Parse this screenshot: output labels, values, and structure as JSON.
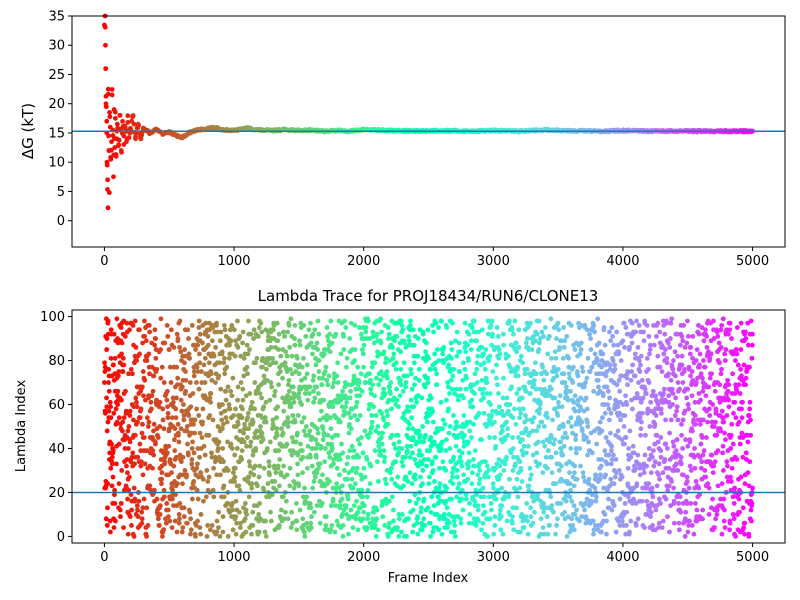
{
  "chart_data": [
    {
      "type": "scatter",
      "title": "",
      "xlabel": "",
      "ylabel": "ΔG (kT)",
      "xlim": [
        -250,
        5250
      ],
      "ylim": [
        -4.5,
        35
      ],
      "x_ticks": [
        0,
        1000,
        2000,
        3000,
        4000,
        5000
      ],
      "y_ticks": [
        0,
        5,
        10,
        15,
        20,
        25,
        30,
        35
      ],
      "x_tick_labels": [
        "0",
        "1000",
        "2000",
        "3000",
        "4000",
        "5000"
      ],
      "y_tick_labels": [
        "0",
        "5",
        "10",
        "15",
        "20",
        "25",
        "30",
        "35"
      ],
      "hline": {
        "y": 15.3,
        "color": "#1f77b4"
      },
      "colormap": "rainbow (reversed: red at frame 0, violet at frame 5000)",
      "series": [
        {
          "points": [
            [
              5,
              35.0
            ],
            [
              8,
              30.0
            ],
            [
              10,
              26.0
            ],
            [
              12,
              20.0
            ],
            [
              15,
              19.5
            ],
            [
              18,
              17.0
            ],
            [
              20,
              10.0
            ],
            [
              22,
              9.5
            ],
            [
              25,
              7.0
            ],
            [
              28,
              2.2
            ],
            [
              30,
              22.5
            ],
            [
              32,
              14.5
            ],
            [
              35,
              12.0
            ],
            [
              38,
              4.8
            ],
            [
              40,
              18.5
            ],
            [
              45,
              16.0
            ],
            [
              50,
              10.5
            ],
            [
              55,
              13.5
            ],
            [
              60,
              21.5
            ],
            [
              65,
              15.5
            ],
            [
              70,
              7.5
            ],
            [
              75,
              19.0
            ],
            [
              80,
              12.5
            ],
            [
              85,
              17.5
            ],
            [
              90,
              11.0
            ],
            [
              95,
              14.0
            ],
            [
              100,
              16.5
            ],
            [
              110,
              13.0
            ],
            [
              120,
              18.0
            ],
            [
              130,
              12.0
            ],
            [
              140,
              17.0
            ],
            [
              150,
              14.5
            ],
            [
              160,
              16.0
            ],
            [
              170,
              13.5
            ],
            [
              180,
              16.8
            ],
            [
              190,
              14.2
            ],
            [
              200,
              15.8
            ],
            [
              220,
              17.8
            ],
            [
              240,
              14.0
            ],
            [
              260,
              16.5
            ],
            [
              280,
              14.0
            ],
            [
              300,
              15.8
            ],
            [
              350,
              15.0
            ],
            [
              400,
              15.6
            ],
            [
              450,
              14.8
            ],
            [
              500,
              15.2
            ],
            [
              550,
              14.6
            ],
            [
              600,
              14.2
            ],
            [
              650,
              15.0
            ],
            [
              700,
              15.4
            ],
            [
              750,
              15.6
            ],
            [
              800,
              15.8
            ],
            [
              850,
              15.9
            ],
            [
              900,
              15.6
            ],
            [
              1000,
              15.4
            ],
            [
              1100,
              15.8
            ],
            [
              1200,
              15.5
            ],
            [
              1300,
              15.4
            ],
            [
              1400,
              15.6
            ],
            [
              1500,
              15.4
            ],
            [
              1600,
              15.5
            ],
            [
              1700,
              15.3
            ],
            [
              1800,
              15.4
            ],
            [
              1900,
              15.3
            ],
            [
              2000,
              15.6
            ],
            [
              2200,
              15.4
            ],
            [
              2400,
              15.3
            ],
            [
              2600,
              15.4
            ],
            [
              2800,
              15.3
            ],
            [
              3000,
              15.4
            ],
            [
              3200,
              15.3
            ],
            [
              3400,
              15.5
            ],
            [
              3600,
              15.4
            ],
            [
              3800,
              15.3
            ],
            [
              4000,
              15.4
            ],
            [
              4200,
              15.3
            ],
            [
              4400,
              15.3
            ],
            [
              4600,
              15.3
            ],
            [
              4800,
              15.3
            ],
            [
              5000,
              15.3
            ]
          ]
        }
      ]
    },
    {
      "type": "scatter",
      "title": "Lambda Trace for PROJ18434/RUN6/CLONE13",
      "xlabel": "Frame Index",
      "ylabel": "Lambda Index",
      "xlim": [
        -250,
        5250
      ],
      "ylim": [
        -3,
        103
      ],
      "x_ticks": [
        0,
        1000,
        2000,
        3000,
        4000,
        5000
      ],
      "y_ticks": [
        0,
        20,
        40,
        60,
        80,
        100
      ],
      "x_tick_labels": [
        "0",
        "1000",
        "2000",
        "3000",
        "4000",
        "5000"
      ],
      "y_tick_labels": [
        "0",
        "20",
        "40",
        "60",
        "80",
        "100"
      ],
      "hline": {
        "y": 20,
        "color": "#1f77b4"
      },
      "colormap": "rainbow (reversed: red at frame 0, violet at frame 5000)",
      "description_range": {
        "frames": [
          0,
          5000
        ],
        "lambda": [
          0,
          99
        ]
      }
    }
  ]
}
